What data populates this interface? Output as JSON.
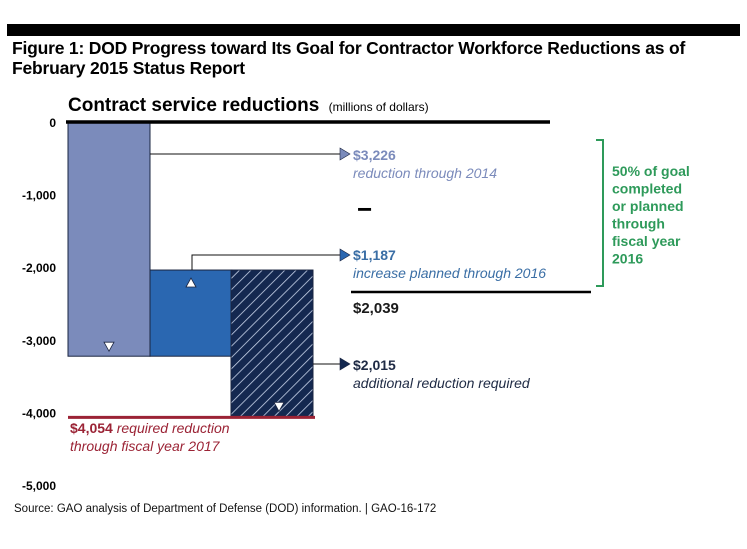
{
  "figure": {
    "title": "Figure 1: DOD Progress toward Its Goal for Contractor Workforce Reductions as of February 2015 Status Report",
    "source": "Source: GAO analysis of Department of Defense (DOD) information.  |  GAO-16-172"
  },
  "colors": {
    "reduction_2014": "#7b8bbb",
    "increase_2016": "#2a67b1",
    "additional_required": "#142850",
    "required_line": "#9b2335",
    "goal_bracket": "#2e9a5a",
    "reduction_text": "#7b8bbb",
    "increase_text": "#3a6ea5"
  },
  "chart_data": {
    "type": "bar",
    "subtype": "waterfall",
    "title": "Contract service reductions",
    "units_label": "(millions of dollars)",
    "xlabel": "",
    "ylabel": "",
    "ylim": [
      -5000,
      0
    ],
    "yticks": [
      0,
      -1000,
      -2000,
      -3000,
      -4000,
      -5000
    ],
    "ytick_labels": [
      "0",
      "-1,000",
      "-2,000",
      "-3,000",
      "-4,000",
      "-5,000"
    ],
    "grid": false,
    "series": [
      {
        "name": "reduction through 2014",
        "start": 0,
        "end": -3226,
        "value": -3226,
        "direction": "down",
        "pattern": "solid"
      },
      {
        "name": "increase planned through 2016",
        "start": -3226,
        "end": -2039,
        "value": 1187,
        "direction": "up",
        "pattern": "solid"
      },
      {
        "name": "additional reduction required",
        "start": -2039,
        "end": -4054,
        "value": -2015,
        "direction": "down",
        "pattern": "hatched"
      }
    ],
    "required_line": {
      "value": -4054,
      "label_amount": "$4,054",
      "label_text_1": " required reduction",
      "label_text_2": "through fiscal year 2017"
    },
    "annotations": [
      {
        "amount": "$3,226",
        "text": "reduction through 2014"
      },
      {
        "amount": "$1,187",
        "text": "increase planned through 2016"
      },
      {
        "amount": "$2,015",
        "text": "additional reduction required"
      }
    ],
    "minus_sign": "−",
    "net_total": "$2,039",
    "goal_note": [
      "50% of goal",
      "completed",
      "or planned",
      "through",
      "fiscal year",
      "2016"
    ]
  }
}
